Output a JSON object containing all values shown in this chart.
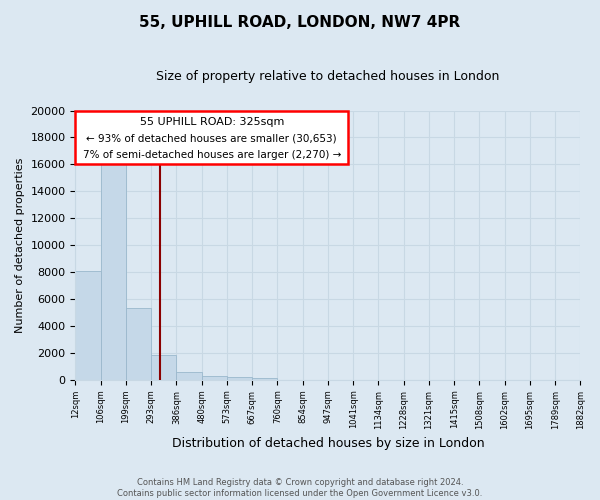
{
  "title": "55, UPHILL ROAD, LONDON, NW7 4PR",
  "subtitle": "Size of property relative to detached houses in London",
  "xlabel": "Distribution of detached houses by size in London",
  "ylabel": "Number of detached properties",
  "bar_values": [
    8100,
    16600,
    5300,
    1850,
    600,
    280,
    180,
    130,
    0,
    0,
    0,
    0,
    0,
    0,
    0,
    0,
    0,
    0,
    0,
    0
  ],
  "x_labels": [
    "12sqm",
    "106sqm",
    "199sqm",
    "293sqm",
    "386sqm",
    "480sqm",
    "573sqm",
    "667sqm",
    "760sqm",
    "854sqm",
    "947sqm",
    "1041sqm",
    "1134sqm",
    "1228sqm",
    "1321sqm",
    "1415sqm",
    "1508sqm",
    "1602sqm",
    "1695sqm",
    "1789sqm",
    "1882sqm"
  ],
  "bar_color": "#c5d8e8",
  "bar_edge_color": "#9ab8cc",
  "ylim": [
    0,
    20000
  ],
  "yticks": [
    0,
    2000,
    4000,
    6000,
    8000,
    10000,
    12000,
    14000,
    16000,
    18000,
    20000
  ],
  "property_label": "55 UPHILL ROAD: 325sqm",
  "annotation_line1": "← 93% of detached houses are smaller (30,653)",
  "annotation_line2": "7% of semi-detached houses are larger (2,270) →",
  "footer_line1": "Contains HM Land Registry data © Crown copyright and database right 2024.",
  "footer_line2": "Contains public sector information licensed under the Open Government Licence v3.0.",
  "background_color": "#dce8f2",
  "grid_color": "#c8d8e4",
  "plot_bg_color": "#dce8f2"
}
